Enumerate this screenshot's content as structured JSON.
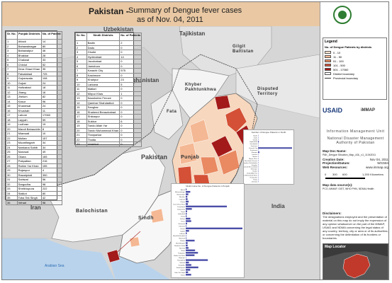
{
  "header": {
    "country": "Pakistan -",
    "subtitle_line1": "Summary of Dengue fever cases",
    "subtitle_line2": "as of Nov. 04, 2011"
  },
  "map": {
    "regions": {
      "uzbekistan": "Uzbekistan",
      "tajikistan": "Tajikistan",
      "afghanistan": "Afghanistan",
      "iran": "Iran",
      "india": "India",
      "pakistan": "Pakistan",
      "balochistan": "Balochistan",
      "sindh": "Sindh",
      "punjab": "Punjab",
      "kpk": "Khyber Pakhtunkhwa",
      "gilgit": "Gilgit Baltistan",
      "disputed": "Disputed Territory",
      "fata": "Fata",
      "arabian_sea": "Arabian Sea"
    }
  },
  "punjab_table": {
    "headers": [
      "Sr. No.",
      "Punjab Districts",
      "No. of Patient"
    ],
    "rows": [
      [
        "1",
        "Attock",
        "14"
      ],
      [
        "2",
        "Bahawalnagar",
        "80"
      ],
      [
        "3",
        "Bahawalpur",
        "46"
      ],
      [
        "4",
        "Bhakkar",
        "28"
      ],
      [
        "5",
        "Chakwal",
        "33"
      ],
      [
        "6",
        "Chiniot",
        "52"
      ],
      [
        "7",
        "Dera Ghazi Khan",
        "39"
      ],
      [
        "8",
        "Faisalabad",
        "725"
      ],
      [
        "9",
        "Gujranwala",
        "108"
      ],
      [
        "10",
        "Gujrat",
        "24"
      ],
      [
        "11",
        "Hafizabad",
        "18"
      ],
      [
        "12",
        "Jhang",
        "16"
      ],
      [
        "13",
        "Jhelum",
        "82"
      ],
      [
        "14",
        "Kasur",
        "96"
      ],
      [
        "15",
        "Khanewal",
        "24"
      ],
      [
        "16",
        "Khushab",
        "11"
      ],
      [
        "17",
        "Lahore",
        "17060"
      ],
      [
        "18",
        "Layyah",
        "59"
      ],
      [
        "19",
        "Lodhran",
        "19"
      ],
      [
        "20",
        "Mandi Bahauddin",
        "8"
      ],
      [
        "21",
        "Mianwali",
        "10"
      ],
      [
        "22",
        "Multan",
        "157"
      ],
      [
        "23",
        "Muzaffargarh",
        "34"
      ],
      [
        "24",
        "Nankana Sahib",
        "34"
      ],
      [
        "25",
        "Narowal",
        "49"
      ],
      [
        "26",
        "Okara",
        "165"
      ],
      [
        "27",
        "Pakpattan",
        "216"
      ],
      [
        "28",
        "Rahim Yar Khan",
        "155"
      ],
      [
        "29",
        "Rajanpur",
        "4"
      ],
      [
        "30",
        "Rawalpindi",
        "390"
      ],
      [
        "31",
        "Sahiwal",
        "56"
      ],
      [
        "32",
        "Sargodha",
        "98"
      ],
      [
        "33",
        "Sheikhupura",
        "222"
      ],
      [
        "34",
        "Sialkot",
        "80"
      ],
      [
        "35",
        "Toba Tek Singh",
        "42"
      ],
      [
        "36",
        "Vehari",
        "96"
      ]
    ]
  },
  "sindh_table": {
    "headers": [
      "Sr. No.",
      "Sindh Districts",
      "No. of Patients"
    ],
    "rows": [
      [
        "1",
        "Badin",
        "2"
      ],
      [
        "2",
        "Dadu",
        "0"
      ],
      [
        "3",
        "Ghotki",
        "0"
      ],
      [
        "4",
        "Hyderabad",
        "14"
      ],
      [
        "5",
        "Jacobabad",
        "0"
      ],
      [
        "6",
        "Jamshoro",
        "0"
      ],
      [
        "7",
        "Karachi City",
        "575"
      ],
      [
        "8",
        "Kashmore",
        "0"
      ],
      [
        "9",
        "Khairpur",
        "23"
      ],
      [
        "10",
        "Larkana",
        "5"
      ],
      [
        "11",
        "Matiari",
        "0"
      ],
      [
        "12",
        "Mirpur Khas",
        "1"
      ],
      [
        "13",
        "Naushahro Feroze",
        "0"
      ],
      [
        "14",
        "Qambar Shahdadkot",
        "0"
      ],
      [
        "15",
        "Sanghar",
        "0"
      ],
      [
        "16",
        "Shaheed Benazirabad",
        "0"
      ],
      [
        "17",
        "Shikarpur",
        "0"
      ],
      [
        "18",
        "Sukkur",
        "6"
      ],
      [
        "19",
        "Tando Allah Yar",
        "0"
      ],
      [
        "20",
        "Tando Muhammad Khan",
        "0"
      ],
      [
        "21",
        "Tharparkar",
        "0"
      ],
      [
        "22",
        "Thatta",
        "0"
      ],
      [
        "23",
        "Umerkot",
        "0"
      ]
    ]
  },
  "legend": {
    "title": "Legend",
    "subtitle": "No. of Dengue Patients by districts",
    "classes": [
      {
        "label": "0 - 10",
        "color": "#fbe3cf"
      },
      {
        "label": "11 - 50",
        "color": "#f4b894"
      },
      {
        "label": "51 - 100",
        "color": "#e98a62"
      },
      {
        "label": "101 - 500",
        "color": "#d45036"
      },
      {
        "label": "501 - 17060",
        "color": "#a31a1a"
      }
    ],
    "district_boundary": "District boundary",
    "province_boundary": "Provincial boundary"
  },
  "colors": {
    "title_band": "#e9c8a3",
    "highest": "#a31a1a"
  },
  "logos": {
    "usaid": "USAID",
    "immap": "iMMAP"
  },
  "info": {
    "unit": "Information Management Unit",
    "authority_line1": "National Disaster Management",
    "authority_line2": "Authority of Pakistan",
    "map_doc_name_key": "Map Doc Name:",
    "map_doc_name_val": "PAK_Dengue Situation_Map_A3L_v1_11042011",
    "creation_date_key": "Creation Date:",
    "creation_date_val": "Nov 04, 2011",
    "projection_key": "Projection/Datum:",
    "projection_val": "WGS84",
    "web_key": "Web Resources:",
    "web_val": "www.immap.org",
    "scale_start": "0",
    "scale_mid1": "300",
    "scale_mid2": "600",
    "scale_end": "1,200 Kilometers",
    "sources_key": "Map data source(s):",
    "sources_val": "PCO, iMMAP, GIST, WHO PHN, NDMA-Health",
    "disclaimer_key": "Disclaimers:",
    "disclaimer_text": "The designations employed and the presentation of material on this map do not imply the expression of any opinion whatsoever on the part of the iMMAP, USAID and NDMA concerning the legal status of any country, territory, city or area or of its authorities, or concerning the delimitation of its frontiers or boundaries.",
    "locator_label": "Map Locator"
  },
  "charts": {
    "sindh_chart_title": "Number of Dengue Patients in Sindh",
    "punjab_chart_title": "District wise No. of Dengue Patients in Punjab"
  }
}
